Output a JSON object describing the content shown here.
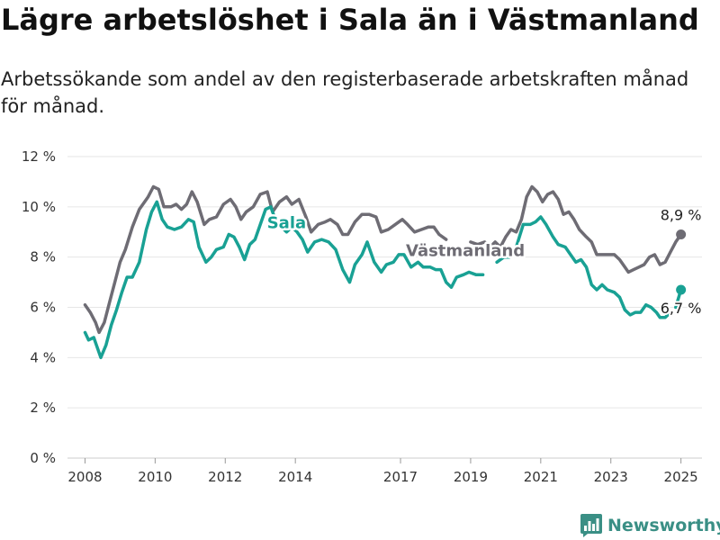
{
  "title": "Lägre arbetslöshet i Sala än i Västmanland",
  "subtitle": "Arbetssökande som andel av den registerbaserade arbetskraften månad för månad.",
  "brand": {
    "name": "Newsworthy",
    "color": "#3a8f85",
    "icon": "bar-chart-logo-icon"
  },
  "chart_data": {
    "type": "line",
    "title": "Lägre arbetslöshet i Sala än i Västmanland",
    "xlabel": "",
    "ylabel": "",
    "ylim": [
      0,
      12
    ],
    "xlim": [
      2007.5,
      2025.6
    ],
    "grid": true,
    "y_ticks": [
      {
        "value": 0,
        "label": "0 %"
      },
      {
        "value": 2,
        "label": "2 %"
      },
      {
        "value": 4,
        "label": "4 %"
      },
      {
        "value": 6,
        "label": "6 %"
      },
      {
        "value": 8,
        "label": "8 %"
      },
      {
        "value": 10,
        "label": "10 %"
      },
      {
        "value": 12,
        "label": "12 %"
      }
    ],
    "x_ticks": [
      {
        "value": 2008,
        "label": "2008"
      },
      {
        "value": 2010,
        "label": "2010"
      },
      {
        "value": 2012,
        "label": "2012"
      },
      {
        "value": 2014,
        "label": "2014"
      },
      {
        "value": 2017,
        "label": "2017"
      },
      {
        "value": 2019,
        "label": "2019"
      },
      {
        "value": 2021,
        "label": "2021"
      },
      {
        "value": 2023,
        "label": "2023"
      },
      {
        "value": 2025,
        "label": "2025"
      }
    ],
    "series": [
      {
        "name": "Västmanland",
        "color": "#6e6c74",
        "label_at": [
          2018.85,
          8.05
        ],
        "end_label": "8,9 %",
        "end_label_pos": "above",
        "points": [
          [
            2008.0,
            6.1
          ],
          [
            2008.15,
            5.8
          ],
          [
            2008.3,
            5.4
          ],
          [
            2008.4,
            5.0
          ],
          [
            2008.55,
            5.4
          ],
          [
            2008.7,
            6.2
          ],
          [
            2008.85,
            7.0
          ],
          [
            2009.0,
            7.8
          ],
          [
            2009.15,
            8.3
          ],
          [
            2009.35,
            9.2
          ],
          [
            2009.55,
            9.9
          ],
          [
            2009.8,
            10.4
          ],
          [
            2009.95,
            10.8
          ],
          [
            2010.1,
            10.7
          ],
          [
            2010.25,
            10.0
          ],
          [
            2010.45,
            10.0
          ],
          [
            2010.6,
            10.1
          ],
          [
            2010.75,
            9.9
          ],
          [
            2010.9,
            10.1
          ],
          [
            2011.05,
            10.6
          ],
          [
            2011.2,
            10.2
          ],
          [
            2011.4,
            9.3
          ],
          [
            2011.55,
            9.5
          ],
          [
            2011.75,
            9.6
          ],
          [
            2011.95,
            10.1
          ],
          [
            2012.15,
            10.3
          ],
          [
            2012.3,
            10.0
          ],
          [
            2012.45,
            9.5
          ],
          [
            2012.6,
            9.8
          ],
          [
            2012.8,
            10.0
          ],
          [
            2013.0,
            10.5
          ],
          [
            2013.2,
            10.6
          ],
          [
            2013.35,
            9.8
          ],
          [
            2013.55,
            10.2
          ],
          [
            2013.75,
            10.4
          ],
          [
            2013.9,
            10.1
          ],
          [
            2014.1,
            10.3
          ],
          [
            2014.3,
            9.6
          ],
          [
            2014.45,
            9.0
          ],
          [
            2014.65,
            9.3
          ],
          [
            2014.85,
            9.4
          ],
          [
            2015.0,
            9.5
          ],
          [
            2015.2,
            9.3
          ],
          [
            2015.35,
            8.9
          ],
          [
            2015.5,
            8.9
          ],
          [
            2015.7,
            9.4
          ],
          [
            2015.9,
            9.7
          ],
          [
            2016.1,
            9.7
          ],
          [
            2016.3,
            9.6
          ],
          [
            2016.45,
            9.0
          ],
          [
            2016.65,
            9.1
          ],
          [
            2016.85,
            9.3
          ],
          [
            2017.05,
            9.5
          ],
          [
            2017.2,
            9.3
          ],
          [
            2017.4,
            9.0
          ],
          [
            2017.6,
            9.1
          ],
          [
            2017.8,
            9.2
          ],
          [
            2017.95,
            9.2
          ],
          [
            2018.1,
            8.9
          ],
          [
            2018.3,
            8.7
          ]
        ],
        "points_b": [
          [
            2019.0,
            8.6
          ],
          [
            2019.2,
            8.5
          ],
          [
            2019.4,
            8.6
          ],
          [
            2019.55,
            8.4
          ],
          [
            2019.7,
            8.6
          ],
          [
            2019.85,
            8.4
          ],
          [
            2020.0,
            8.8
          ],
          [
            2020.15,
            9.1
          ],
          [
            2020.3,
            9.0
          ],
          [
            2020.45,
            9.5
          ],
          [
            2020.6,
            10.4
          ],
          [
            2020.75,
            10.8
          ],
          [
            2020.9,
            10.6
          ],
          [
            2021.05,
            10.2
          ],
          [
            2021.2,
            10.5
          ],
          [
            2021.35,
            10.6
          ],
          [
            2021.5,
            10.3
          ],
          [
            2021.65,
            9.7
          ],
          [
            2021.8,
            9.8
          ],
          [
            2021.95,
            9.5
          ],
          [
            2022.1,
            9.1
          ],
          [
            2022.3,
            8.8
          ],
          [
            2022.45,
            8.6
          ],
          [
            2022.6,
            8.1
          ],
          [
            2022.8,
            8.1
          ],
          [
            2022.95,
            8.1
          ],
          [
            2023.1,
            8.1
          ],
          [
            2023.25,
            7.9
          ],
          [
            2023.4,
            7.6
          ],
          [
            2023.5,
            7.4
          ],
          [
            2023.65,
            7.5
          ],
          [
            2023.8,
            7.6
          ],
          [
            2023.95,
            7.7
          ],
          [
            2024.1,
            8.0
          ],
          [
            2024.25,
            8.1
          ],
          [
            2024.4,
            7.7
          ],
          [
            2024.55,
            7.8
          ],
          [
            2024.7,
            8.2
          ],
          [
            2024.85,
            8.6
          ],
          [
            2025.0,
            8.9
          ]
        ]
      },
      {
        "name": "Sala",
        "color": "#19a194",
        "label_at": [
          2013.75,
          9.15
        ],
        "end_label": "6,7 %",
        "end_label_pos": "below",
        "points": [
          [
            2008.0,
            5.0
          ],
          [
            2008.1,
            4.7
          ],
          [
            2008.25,
            4.8
          ],
          [
            2008.35,
            4.4
          ],
          [
            2008.45,
            4.0
          ],
          [
            2008.6,
            4.5
          ],
          [
            2008.75,
            5.3
          ],
          [
            2008.9,
            5.9
          ],
          [
            2009.05,
            6.6
          ],
          [
            2009.2,
            7.2
          ],
          [
            2009.35,
            7.2
          ],
          [
            2009.55,
            7.8
          ],
          [
            2009.75,
            9.1
          ],
          [
            2009.9,
            9.8
          ],
          [
            2010.05,
            10.2
          ],
          [
            2010.2,
            9.5
          ],
          [
            2010.35,
            9.2
          ],
          [
            2010.55,
            9.1
          ],
          [
            2010.75,
            9.2
          ],
          [
            2010.95,
            9.5
          ],
          [
            2011.1,
            9.4
          ],
          [
            2011.25,
            8.4
          ],
          [
            2011.45,
            7.8
          ],
          [
            2011.6,
            8.0
          ],
          [
            2011.75,
            8.3
          ],
          [
            2011.95,
            8.4
          ],
          [
            2012.1,
            8.9
          ],
          [
            2012.25,
            8.8
          ],
          [
            2012.4,
            8.4
          ],
          [
            2012.55,
            7.9
          ],
          [
            2012.7,
            8.5
          ],
          [
            2012.85,
            8.7
          ],
          [
            2013.0,
            9.3
          ],
          [
            2013.15,
            9.9
          ],
          [
            2013.3,
            10.0
          ],
          [
            2013.45,
            9.4
          ],
          [
            2013.6,
            9.2
          ],
          [
            2013.75,
            9.0
          ],
          [
            2013.9,
            9.2
          ],
          [
            2014.05,
            9.0
          ],
          [
            2014.2,
            8.7
          ],
          [
            2014.35,
            8.2
          ],
          [
            2014.55,
            8.6
          ],
          [
            2014.75,
            8.7
          ],
          [
            2014.95,
            8.6
          ],
          [
            2015.15,
            8.3
          ],
          [
            2015.35,
            7.5
          ],
          [
            2015.55,
            7.0
          ],
          [
            2015.7,
            7.7
          ],
          [
            2015.9,
            8.1
          ],
          [
            2016.05,
            8.6
          ],
          [
            2016.25,
            7.8
          ],
          [
            2016.45,
            7.4
          ],
          [
            2016.6,
            7.7
          ],
          [
            2016.8,
            7.8
          ],
          [
            2016.95,
            8.1
          ],
          [
            2017.1,
            8.1
          ],
          [
            2017.3,
            7.6
          ],
          [
            2017.5,
            7.8
          ],
          [
            2017.65,
            7.6
          ],
          [
            2017.85,
            7.6
          ],
          [
            2018.0,
            7.5
          ],
          [
            2018.15,
            7.5
          ],
          [
            2018.3,
            7.0
          ],
          [
            2018.45,
            6.8
          ],
          [
            2018.6,
            7.2
          ],
          [
            2018.8,
            7.3
          ],
          [
            2018.95,
            7.4
          ],
          [
            2019.15,
            7.3
          ],
          [
            2019.35,
            7.3
          ]
        ],
        "points_b": [
          [
            2019.75,
            7.8
          ],
          [
            2019.95,
            8.0
          ],
          [
            2020.1,
            8.0
          ],
          [
            2020.3,
            8.4
          ],
          [
            2020.5,
            9.3
          ],
          [
            2020.7,
            9.3
          ],
          [
            2020.85,
            9.4
          ],
          [
            2021.0,
            9.6
          ],
          [
            2021.15,
            9.3
          ],
          [
            2021.35,
            8.8
          ],
          [
            2021.5,
            8.5
          ],
          [
            2021.7,
            8.4
          ],
          [
            2021.85,
            8.1
          ],
          [
            2022.0,
            7.8
          ],
          [
            2022.15,
            7.9
          ],
          [
            2022.3,
            7.6
          ],
          [
            2022.45,
            6.9
          ],
          [
            2022.6,
            6.7
          ],
          [
            2022.75,
            6.9
          ],
          [
            2022.9,
            6.7
          ],
          [
            2023.1,
            6.6
          ],
          [
            2023.25,
            6.4
          ],
          [
            2023.4,
            5.9
          ],
          [
            2023.55,
            5.7
          ],
          [
            2023.7,
            5.8
          ],
          [
            2023.85,
            5.8
          ],
          [
            2024.0,
            6.1
          ],
          [
            2024.15,
            6.0
          ],
          [
            2024.3,
            5.8
          ],
          [
            2024.4,
            5.6
          ],
          [
            2024.55,
            5.6
          ],
          [
            2024.7,
            5.8
          ]
        ],
        "points_c": [
          [
            2024.85,
            6.0
          ],
          [
            2025.0,
            6.7
          ]
        ]
      }
    ]
  }
}
